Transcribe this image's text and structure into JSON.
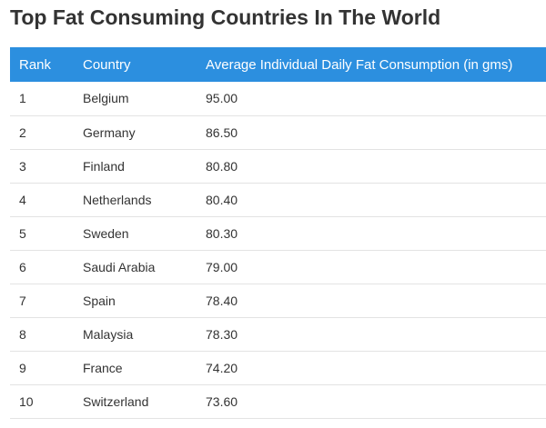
{
  "chart_data": {
    "type": "table",
    "title": "Top Fat Consuming Countries In The World",
    "columns": [
      "Rank",
      "Country",
      "Average Individual Daily Fat Consumption (in gms)"
    ],
    "rows": [
      [
        "1",
        "Belgium",
        "95.00"
      ],
      [
        "2",
        "Germany",
        "86.50"
      ],
      [
        "3",
        "Finland",
        "80.80"
      ],
      [
        "4",
        "Netherlands",
        "80.40"
      ],
      [
        "5",
        "Sweden",
        "80.30"
      ],
      [
        "6",
        "Saudi Arabia",
        "79.00"
      ],
      [
        "7",
        "Spain",
        "78.40"
      ],
      [
        "8",
        "Malaysia",
        "78.30"
      ],
      [
        "9",
        "France",
        "74.20"
      ],
      [
        "10",
        "Switzerland",
        "73.60"
      ]
    ]
  },
  "colors": {
    "header_background": "#2c8fdf",
    "header_text": "#ffffff",
    "row_divider": "#e3e3e3",
    "text": "#333333"
  }
}
